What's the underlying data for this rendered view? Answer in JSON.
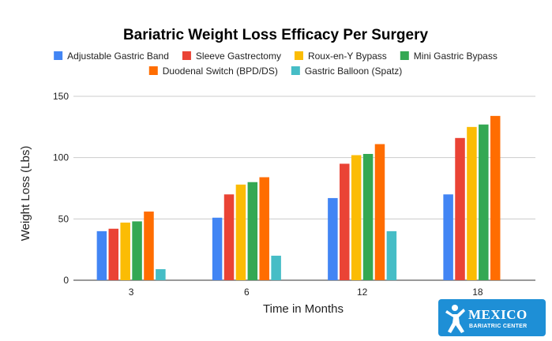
{
  "chart_data": {
    "type": "bar",
    "title": "Bariatric Weight Loss Efficacy Per Surgery",
    "xlabel": "Time in Months",
    "ylabel": "Weight Loss (Lbs)",
    "ylim": [
      0,
      150
    ],
    "yticks": [
      0,
      50,
      100,
      150
    ],
    "grid": true,
    "legend_position": "top",
    "categories": [
      "3",
      "6",
      "12",
      "18"
    ],
    "series": [
      {
        "name": "Adjustable Gastric Band",
        "color": "#4285F4",
        "values": [
          40,
          51,
          67,
          70
        ]
      },
      {
        "name": "Sleeve Gastrectomy",
        "color": "#EA4335",
        "values": [
          42,
          70,
          95,
          116
        ]
      },
      {
        "name": "Roux-en-Y Bypass",
        "color": "#FBBC04",
        "values": [
          47,
          78,
          102,
          125
        ]
      },
      {
        "name": "Mini Gastric Bypass",
        "color": "#34A853",
        "values": [
          48,
          80,
          103,
          127
        ]
      },
      {
        "name": "Duodenal Switch (BPD/DS)",
        "color": "#FF6D01",
        "values": [
          56,
          84,
          111,
          134
        ]
      },
      {
        "name": "Gastric Balloon (Spatz)",
        "color": "#46BDC6",
        "values": [
          9,
          20,
          40,
          null
        ]
      }
    ]
  },
  "logo": {
    "name": "MEXICO",
    "subtitle": "BARIATRIC CENTER",
    "background": "#1E8FD6",
    "icon": "person-figure-icon"
  }
}
